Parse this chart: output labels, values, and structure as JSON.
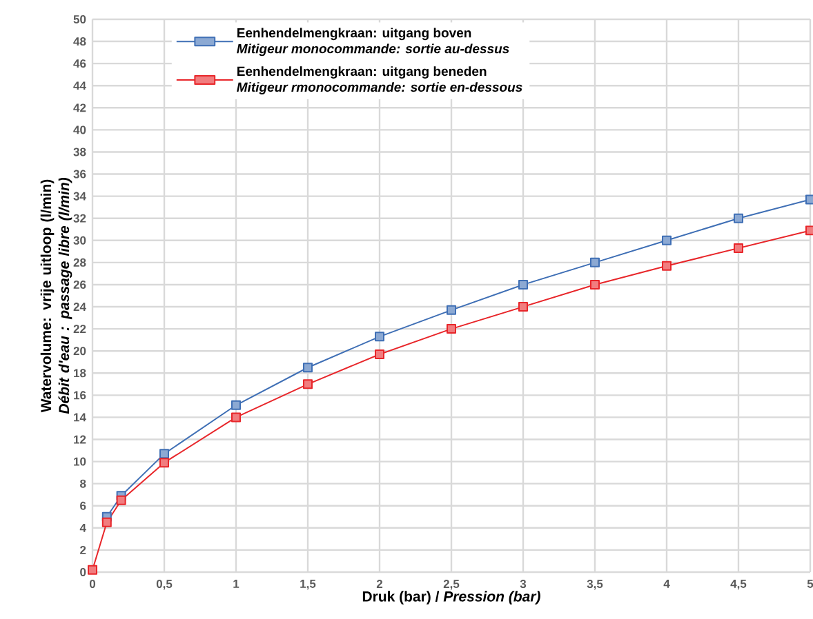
{
  "chart_data": {
    "type": "line",
    "xlabel": "Druk (bar) / *Pression (bar)*",
    "ylabel": "Watervolume: vrije uitloop (l/min) *Débit d'eau : passage libre (l/min)*",
    "x": [
      0,
      0.1,
      0.2,
      0.5,
      1,
      1.5,
      2,
      2.5,
      3,
      3.5,
      4,
      4.5,
      5
    ],
    "series": [
      {
        "name": "Eenhendelmengkraan: uitgang boven\n*Mitigeur monocommande: sortie au-dessus*",
        "color": "#3f6fb5",
        "values": [
          null,
          5,
          6.9,
          10.7,
          15.1,
          18.5,
          21.3,
          23.7,
          26.0,
          28.0,
          30.0,
          32.0,
          33.7
        ]
      },
      {
        "name": "Eenhendelmengkraan: uitgang beneden\n*Mitigeur rmonocommande: sortie en-dessous*",
        "color": "#e8262a",
        "values": [
          0.2,
          4.5,
          6.5,
          9.9,
          14.0,
          17.0,
          19.7,
          22.0,
          24.0,
          26.0,
          27.7,
          29.3,
          30.9
        ]
      }
    ],
    "xlim": [
      0,
      5
    ],
    "ylim": [
      0,
      50
    ],
    "xticks": [
      0,
      {
        "value": 0.5,
        "label": "0,5"
      },
      1,
      {
        "value": 1.5,
        "label": "1,5"
      },
      2,
      {
        "value": 2.5,
        "label": "2,5"
      },
      3,
      {
        "value": 3.5,
        "label": "3,5"
      },
      4,
      {
        "value": 4.5,
        "label": "4,5"
      },
      5
    ],
    "yticks": [
      0,
      2,
      4,
      6,
      8,
      10,
      12,
      14,
      16,
      18,
      20,
      22,
      24,
      26,
      28,
      30,
      32,
      34,
      36,
      38,
      40,
      42,
      44,
      46,
      48,
      50
    ],
    "grid": true,
    "legend": "top left",
    "marker": "square",
    "line_style": "solid"
  }
}
